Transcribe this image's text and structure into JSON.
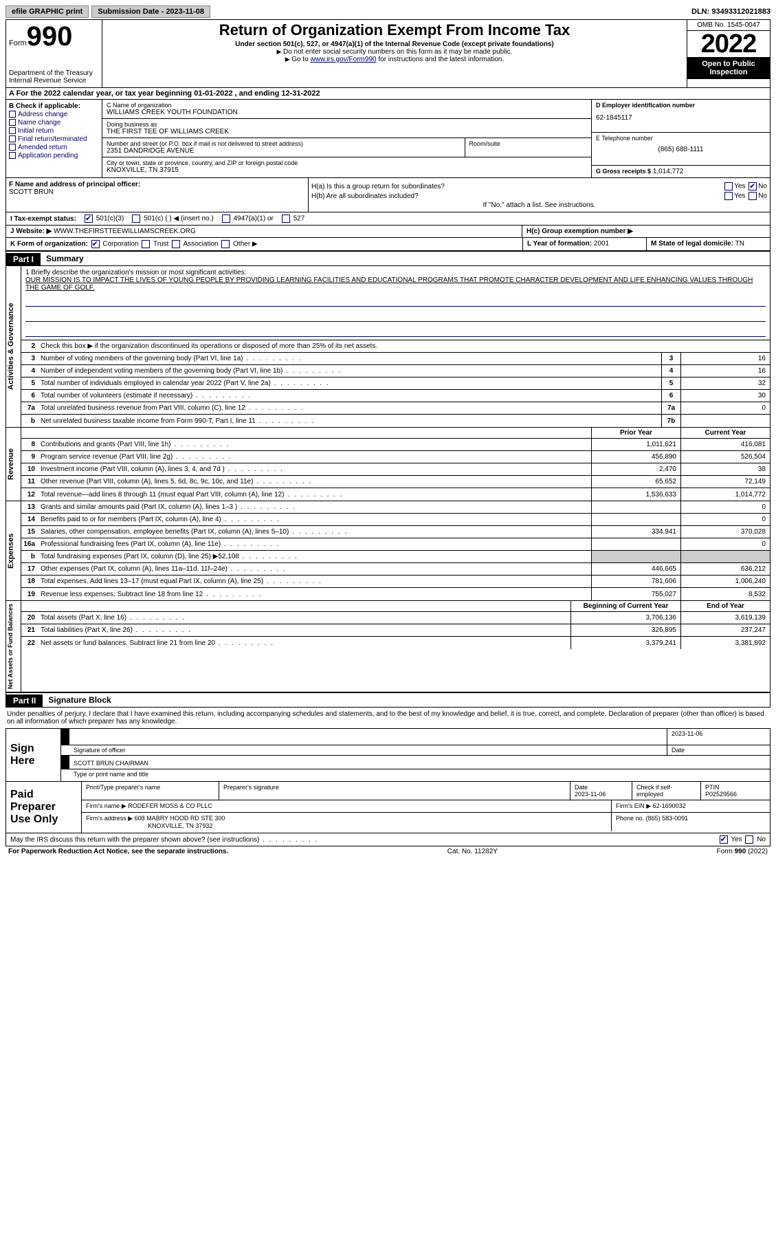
{
  "topbar": {
    "efile": "efile GRAPHIC print",
    "submission": "Submission Date - 2023-11-08",
    "dln": "DLN: 93493312021883"
  },
  "header": {
    "form_word": "Form",
    "form_num": "990",
    "title": "Return of Organization Exempt From Income Tax",
    "subtitle": "Under section 501(c), 527, or 4947(a)(1) of the Internal Revenue Code (except private foundations)",
    "note1": "Do not enter social security numbers on this form as it may be made public.",
    "note2_pre": "Go to ",
    "note2_link": "www.irs.gov/Form990",
    "note2_post": " for instructions and the latest information.",
    "dept": "Department of the Treasury Internal Revenue Service",
    "omb": "OMB No. 1545-0047",
    "year": "2022",
    "inspect": "Open to Public Inspection"
  },
  "line_a": "A For the 2022 calendar year, or tax year beginning 01-01-2022   , and ending 12-31-2022",
  "box_b": {
    "hdr": "B Check if applicable:",
    "addr": "Address change",
    "name": "Name change",
    "init": "Initial return",
    "final": "Final return/terminated",
    "amend": "Amended return",
    "app": "Application pending"
  },
  "box_c": {
    "name_lbl": "C Name of organization",
    "name": "WILLIAMS CREEK YOUTH FOUNDATION",
    "dba_lbl": "Doing business as",
    "dba": "THE FIRST TEE OF WILLIAMS CREEK",
    "street_lbl": "Number and street (or P.O. box if mail is not delivered to street address)",
    "room_lbl": "Room/suite",
    "street": "2351 DANDRIDGE AVENUE",
    "city_lbl": "City or town, state or province, country, and ZIP or foreign postal code",
    "city": "KNOXVILLE, TN  37915"
  },
  "box_d": {
    "ein_lbl": "D Employer identification number",
    "ein": "62-1845117",
    "tel_lbl": "E Telephone number",
    "tel": "(865) 688-1111",
    "gross_lbl": "G Gross receipts $",
    "gross": "1,014,772"
  },
  "box_f": {
    "lbl": "F Name and address of principal officer:",
    "name": "SCOTT BRUN"
  },
  "box_h": {
    "a": "H(a)  Is this a group return for subordinates?",
    "b": "H(b)  Are all subordinates included?",
    "note": "If \"No,\" attach a list. See instructions.",
    "c": "H(c)  Group exemption number ▶",
    "yes": "Yes",
    "no": "No"
  },
  "row_i": {
    "lbl": "I    Tax-exempt status:",
    "o1": "501(c)(3)",
    "o2": "501(c) (  ) ◀ (insert no.)",
    "o3": "4947(a)(1) or",
    "o4": "527"
  },
  "row_j": {
    "lbl": "J   Website: ▶",
    "val": "WWW.THEFIRSTTEEWILLIAMSCREEK.ORG"
  },
  "row_k": {
    "lbl": "K Form of organization:",
    "corp": "Corporation",
    "trust": "Trust",
    "assoc": "Association",
    "other": "Other ▶",
    "l_lbl": "L Year of formation:",
    "l_val": "2001",
    "m_lbl": "M State of legal domicile:",
    "m_val": "TN"
  },
  "parts": {
    "p1": "Part I",
    "p1t": "Summary",
    "p2": "Part II",
    "p2t": "Signature Block"
  },
  "tabs": {
    "gov": "Activities & Governance",
    "rev": "Revenue",
    "exp": "Expenses",
    "net": "Net Assets or Fund Balances"
  },
  "q1": {
    "lbl": "1  Briefly describe the organization's mission or most significant activities:",
    "txt": "OUR MISSION IS TO IMPACT THE LIVES OF YOUNG PEOPLE BY PROVIDING LEARNING FACILITIES AND EDUCATIONAL PROGRAMS THAT PROMOTE CHARACTER DEVELOPMENT AND LIFE ENHANCING VALUES THROUGH THE GAME OF GOLF."
  },
  "q2": "Check this box ▶      if the organization discontinued its operations or disposed of more than 25% of its net assets.",
  "lines_gov": [
    {
      "n": "3",
      "t": "Number of voting members of the governing body (Part VI, line 1a)",
      "b": "3",
      "v": "16"
    },
    {
      "n": "4",
      "t": "Number of independent voting members of the governing body (Part VI, line 1b)",
      "b": "4",
      "v": "16"
    },
    {
      "n": "5",
      "t": "Total number of individuals employed in calendar year 2022 (Part V, line 2a)",
      "b": "5",
      "v": "32"
    },
    {
      "n": "6",
      "t": "Total number of volunteers (estimate if necessary)",
      "b": "6",
      "v": "30"
    },
    {
      "n": "7a",
      "t": "Total unrelated business revenue from Part VIII, column (C), line 12",
      "b": "7a",
      "v": "0"
    },
    {
      "n": "b",
      "t": "Net unrelated business taxable income from Form 990-T, Part I, line 11",
      "b": "7b",
      "v": ""
    }
  ],
  "col_hdr": {
    "prior": "Prior Year",
    "curr": "Current Year",
    "beg": "Beginning of Current Year",
    "end": "End of Year"
  },
  "lines_rev": [
    {
      "n": "8",
      "t": "Contributions and grants (Part VIII, line 1h)",
      "p": "1,011,621",
      "c": "416,081"
    },
    {
      "n": "9",
      "t": "Program service revenue (Part VIII, line 2g)",
      "p": "456,890",
      "c": "526,504"
    },
    {
      "n": "10",
      "t": "Investment income (Part VIII, column (A), lines 3, 4, and 7d )",
      "p": "2,470",
      "c": "38"
    },
    {
      "n": "11",
      "t": "Other revenue (Part VIII, column (A), lines 5, 6d, 8c, 9c, 10c, and 11e)",
      "p": "65,652",
      "c": "72,149"
    },
    {
      "n": "12",
      "t": "Total revenue—add lines 8 through 11 (must equal Part VIII, column (A), line 12)",
      "p": "1,536,633",
      "c": "1,014,772"
    }
  ],
  "lines_exp": [
    {
      "n": "13",
      "t": "Grants and similar amounts paid (Part IX, column (A), lines 1–3 )",
      "p": "",
      "c": "0"
    },
    {
      "n": "14",
      "t": "Benefits paid to or for members (Part IX, column (A), line 4)",
      "p": "",
      "c": "0"
    },
    {
      "n": "15",
      "t": "Salaries, other compensation, employee benefits (Part IX, column (A), lines 5–10)",
      "p": "334,941",
      "c": "370,028"
    },
    {
      "n": "16a",
      "t": "Professional fundraising fees (Part IX, column (A), line 11e)",
      "p": "",
      "c": "0"
    },
    {
      "n": "b",
      "t": "Total fundraising expenses (Part IX, column (D), line 25) ▶52,108",
      "p": "__shade__",
      "c": "__shade__"
    },
    {
      "n": "17",
      "t": "Other expenses (Part IX, column (A), lines 11a–11d, 11f–24e)",
      "p": "446,665",
      "c": "636,212"
    },
    {
      "n": "18",
      "t": "Total expenses. Add lines 13–17 (must equal Part IX, column (A), line 25)",
      "p": "781,606",
      "c": "1,006,240"
    },
    {
      "n": "19",
      "t": "Revenue less expenses. Subtract line 18 from line 12",
      "p": "755,027",
      "c": "8,532"
    }
  ],
  "lines_net": [
    {
      "n": "20",
      "t": "Total assets (Part X, line 16)",
      "p": "3,706,136",
      "c": "3,619,139"
    },
    {
      "n": "21",
      "t": "Total liabilities (Part X, line 26)",
      "p": "326,895",
      "c": "237,247"
    },
    {
      "n": "22",
      "t": "Net assets or fund balances. Subtract line 21 from line 20",
      "p": "3,379,241",
      "c": "3,381,892"
    }
  ],
  "sig": {
    "intro": "Under penalties of perjury, I declare that I have examined this return, including accompanying schedules and statements, and to the best of my knowledge and belief, it is true, correct, and complete. Declaration of preparer (other than officer) is based on all information of which preparer has any knowledge.",
    "here": "Sign Here",
    "sig_lbl": "Signature of officer",
    "date": "2023-11-06",
    "date_lbl": "Date",
    "name": "SCOTT BRUN CHAIRMAN",
    "name_lbl": "Type or print name and title"
  },
  "prep": {
    "lbl": "Paid Preparer Use Only",
    "name_lbl": "Print/Type preparer's name",
    "sig_lbl": "Preparer's signature",
    "date_lbl": "Date",
    "date": "2023-11-06",
    "check_lbl": "Check       if self-employed",
    "ptin_lbl": "PTIN",
    "ptin": "P02529566",
    "firm_lbl": "Firm's name    ▶",
    "firm": "RODEFER MOSS & CO PLLC",
    "ein_lbl": "Firm's EIN ▶",
    "ein": "62-1690032",
    "addr_lbl": "Firm's address ▶",
    "addr1": "608 MABRY HOOD RD STE 300",
    "addr2": "KNOXVILLE, TN  37932",
    "phone_lbl": "Phone no.",
    "phone": "(865) 583-0091"
  },
  "discuss": "May the IRS discuss this return with the preparer shown above? (see instructions)",
  "footer": {
    "left": "For Paperwork Reduction Act Notice, see the separate instructions.",
    "mid": "Cat. No. 11282Y",
    "right": "Form 990 (2022)"
  }
}
